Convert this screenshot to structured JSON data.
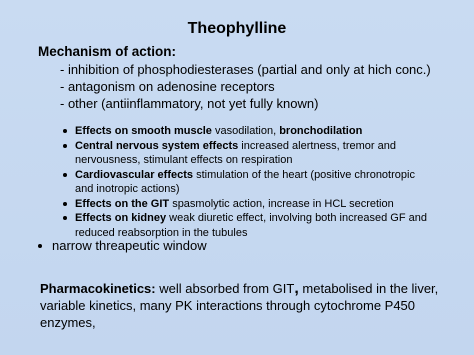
{
  "title": "Theophylline",
  "mechanism": {
    "heading": "Mechanism of action:",
    "items": [
      "- inhibition of phosphodiesterases (partial and only at hich conc.)",
      "- antagonism on adenosine receptors",
      "- other (antiinflammatory, not yet fully known)"
    ]
  },
  "effects": [
    {
      "term": "Effects on smooth muscle",
      "text": "vasodilation,",
      "emphasis": "bronchodilation"
    },
    {
      "term": "Central nervous system effects",
      "text": "increased alertness, tremor and nervousness, stimulant effects on respiration"
    },
    {
      "term": "Cardiovascular effects",
      "text": "stimulation of the heart (positive chronotropic and inotropic actions)"
    },
    {
      "term": "Effects on the GIT",
      "text": "spasmolytic action, increase in HCL secretion"
    },
    {
      "term": "Effects on kidney",
      "text": "weak diuretic effect, involving both increased GF and reduced reabsorption in the tubules"
    }
  ],
  "extra_bullet": "narrow threapeutic window",
  "pharmacokinetics": {
    "term": "Pharmacokinetics:",
    "text_before": "well absorbed from GIT",
    "emphasis": ",",
    "text_after": "metabolised in the liver, variable kinetics, many PK interactions through cytochrome P450 enzymes,"
  }
}
